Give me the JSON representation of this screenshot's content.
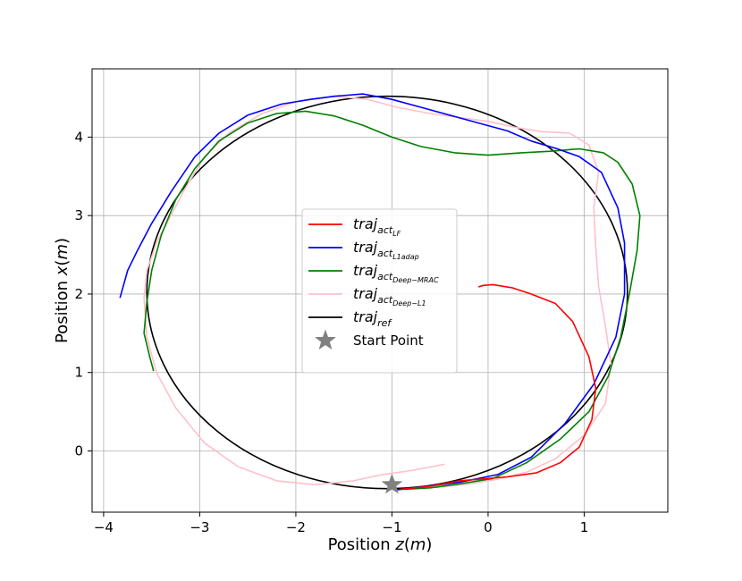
{
  "chart_data": {
    "type": "line",
    "title": "",
    "xlabel": "Position z(m)",
    "ylabel": "Position  x(m)",
    "xlim": [
      -4.12,
      1.87
    ],
    "ylim": [
      -0.78,
      4.87
    ],
    "xticks": [
      -4,
      -3,
      -2,
      -1,
      0,
      1
    ],
    "yticks": [
      0,
      1,
      2,
      3,
      4
    ],
    "xtick_labels": [
      "−4",
      "−3",
      "−2",
      "−1",
      "0",
      "1"
    ],
    "ytick_labels": [
      "0",
      "1",
      "2",
      "3",
      "4"
    ],
    "grid": true,
    "legend_position": "center-left",
    "series": [
      {
        "name": "traj_act_LF",
        "label_main": "traj",
        "label_sub": "act",
        "label_subsub": "LF",
        "color": "#ff0000",
        "points": [
          [
            -0.92,
            -0.49
          ],
          [
            -0.6,
            -0.45
          ],
          [
            -0.3,
            -0.38
          ],
          [
            0.2,
            -0.33
          ],
          [
            0.5,
            -0.28
          ],
          [
            0.75,
            -0.15
          ],
          [
            0.95,
            0.05
          ],
          [
            1.08,
            0.4
          ],
          [
            1.12,
            0.8
          ],
          [
            1.05,
            1.2
          ],
          [
            0.88,
            1.65
          ],
          [
            0.7,
            1.88
          ],
          [
            0.45,
            2.0
          ],
          [
            0.25,
            2.08
          ],
          [
            0.05,
            2.12
          ],
          [
            -0.05,
            2.11
          ],
          [
            -0.1,
            2.09
          ]
        ]
      },
      {
        "name": "traj_act_L1adap",
        "label_main": "traj",
        "label_sub": "act",
        "label_subsub": "L1adap",
        "color": "#0000ff",
        "points": [
          [
            -0.98,
            -0.5
          ],
          [
            -0.7,
            -0.46
          ],
          [
            -0.3,
            -0.4
          ],
          [
            0.1,
            -0.3
          ],
          [
            0.45,
            -0.08
          ],
          [
            0.8,
            0.35
          ],
          [
            1.1,
            0.85
          ],
          [
            1.33,
            1.45
          ],
          [
            1.42,
            2.0
          ],
          [
            1.42,
            2.65
          ],
          [
            1.35,
            3.1
          ],
          [
            1.18,
            3.55
          ],
          [
            0.95,
            3.75
          ],
          [
            0.72,
            3.85
          ],
          [
            0.45,
            3.95
          ],
          [
            0.2,
            4.08
          ],
          [
            -0.1,
            4.18
          ],
          [
            -0.4,
            4.28
          ],
          [
            -0.7,
            4.38
          ],
          [
            -1.0,
            4.48
          ],
          [
            -1.3,
            4.55
          ],
          [
            -1.6,
            4.52
          ],
          [
            -1.85,
            4.48
          ],
          [
            -2.15,
            4.42
          ],
          [
            -2.5,
            4.28
          ],
          [
            -2.8,
            4.05
          ],
          [
            -3.05,
            3.75
          ],
          [
            -3.3,
            3.3
          ],
          [
            -3.5,
            2.9
          ],
          [
            -3.65,
            2.55
          ],
          [
            -3.75,
            2.3
          ],
          [
            -3.83,
            1.95
          ]
        ]
      },
      {
        "name": "traj_act_Deep-MRAC",
        "label_main": "traj",
        "label_sub": "act",
        "label_subsub": "Deep−MRAC",
        "color": "#008000",
        "points": [
          [
            -0.88,
            -0.49
          ],
          [
            -0.6,
            -0.47
          ],
          [
            -0.3,
            -0.42
          ],
          [
            0.05,
            -0.35
          ],
          [
            0.4,
            -0.15
          ],
          [
            0.75,
            0.15
          ],
          [
            1.05,
            0.5
          ],
          [
            1.25,
            0.95
          ],
          [
            1.38,
            1.45
          ],
          [
            1.47,
            2.0
          ],
          [
            1.55,
            2.55
          ],
          [
            1.58,
            3.0
          ],
          [
            1.5,
            3.4
          ],
          [
            1.35,
            3.68
          ],
          [
            1.2,
            3.8
          ],
          [
            0.95,
            3.85
          ],
          [
            0.65,
            3.82
          ],
          [
            0.35,
            3.8
          ],
          [
            0.0,
            3.77
          ],
          [
            -0.35,
            3.8
          ],
          [
            -0.7,
            3.88
          ],
          [
            -1.0,
            4.0
          ],
          [
            -1.3,
            4.15
          ],
          [
            -1.6,
            4.27
          ],
          [
            -1.9,
            4.33
          ],
          [
            -2.2,
            4.3
          ],
          [
            -2.5,
            4.18
          ],
          [
            -2.8,
            3.95
          ],
          [
            -3.05,
            3.6
          ],
          [
            -3.25,
            3.2
          ],
          [
            -3.4,
            2.75
          ],
          [
            -3.5,
            2.3
          ],
          [
            -3.55,
            1.9
          ],
          [
            -3.58,
            1.5
          ],
          [
            -3.52,
            1.2
          ],
          [
            -3.48,
            1.02
          ]
        ]
      },
      {
        "name": "traj_act_Deep-L1",
        "label_main": "traj",
        "label_sub": "act",
        "label_subsub": "Deep−L1",
        "color": "#ffc0cb",
        "points": [
          [
            -0.45,
            -0.17
          ],
          [
            -0.8,
            -0.25
          ],
          [
            -1.1,
            -0.3
          ],
          [
            -1.4,
            -0.38
          ],
          [
            -1.8,
            -0.43
          ],
          [
            -2.2,
            -0.38
          ],
          [
            -2.6,
            -0.2
          ],
          [
            -2.95,
            0.1
          ],
          [
            -3.25,
            0.55
          ],
          [
            -3.45,
            1.0
          ],
          [
            -3.55,
            1.45
          ],
          [
            -3.58,
            1.95
          ],
          [
            -3.55,
            2.3
          ],
          [
            -3.45,
            2.65
          ],
          [
            -3.3,
            3.0
          ],
          [
            -3.15,
            3.35
          ],
          [
            -2.95,
            3.75
          ],
          [
            -2.7,
            4.05
          ],
          [
            -2.35,
            4.3
          ],
          [
            -2.0,
            4.45
          ],
          [
            -1.6,
            4.52
          ],
          [
            -1.25,
            4.48
          ],
          [
            -0.95,
            4.38
          ],
          [
            -0.6,
            4.3
          ],
          [
            -0.3,
            4.25
          ],
          [
            0.0,
            4.2
          ],
          [
            0.3,
            4.12
          ],
          [
            0.55,
            4.07
          ],
          [
            0.85,
            4.05
          ],
          [
            1.05,
            3.9
          ],
          [
            1.15,
            3.55
          ],
          [
            1.1,
            3.1
          ],
          [
            1.12,
            2.6
          ],
          [
            1.15,
            2.1
          ],
          [
            1.22,
            1.6
          ],
          [
            1.28,
            1.1
          ],
          [
            1.22,
            0.6
          ],
          [
            1.0,
            0.2
          ],
          [
            0.7,
            -0.1
          ],
          [
            0.4,
            -0.27
          ],
          [
            0.1,
            -0.36
          ],
          [
            -0.2,
            -0.42
          ],
          [
            -0.5,
            -0.46
          ],
          [
            -0.85,
            -0.48
          ]
        ]
      },
      {
        "name": "traj_ref",
        "label_main": "traj",
        "label_sub": "ref",
        "label_subsub": "",
        "color": "#000000",
        "ellipse": {
          "center_z": -1.05,
          "center_x": 2.02,
          "radius_z": 2.5,
          "radius_x": 2.5
        }
      }
    ],
    "markers": [
      {
        "name": "Start Point",
        "label": "Start Point",
        "z": -1.0,
        "x": -0.43,
        "color": "#808080",
        "shape": "star"
      }
    ]
  }
}
